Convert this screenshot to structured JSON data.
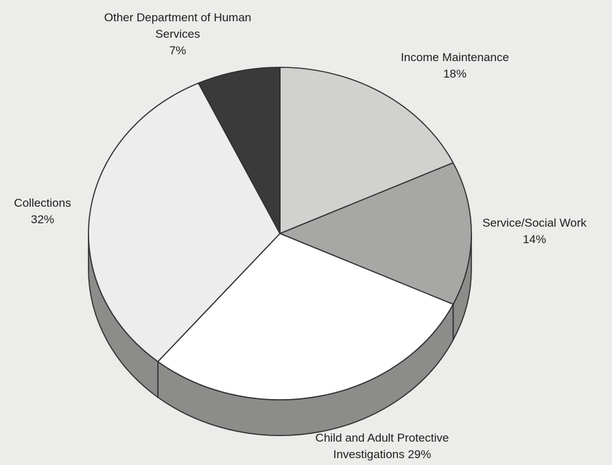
{
  "chart_data": {
    "type": "pie",
    "style": "3d",
    "title": "",
    "slices": [
      {
        "label": "Income Maintenance",
        "value": 18,
        "label_lines": [
          "Income Maintenance",
          "18%"
        ],
        "color": "#d1d1cf"
      },
      {
        "label": "Service/Social Work",
        "value": 14,
        "label_lines": [
          "Service/Social Work",
          "14%"
        ],
        "color": "#a7a7a5"
      },
      {
        "label": "Child and Adult Protective Investigations",
        "value": 29,
        "label_lines": [
          "Child and Adult Protective",
          "Investigations 29%"
        ],
        "color": "#ffffff"
      },
      {
        "label": "Collections",
        "value": 32,
        "label_lines": [
          "Collections",
          "32%"
        ],
        "color": "#ededed"
      },
      {
        "label": "Other Department of Human Services",
        "value": 7,
        "label_lines": [
          "Other Department of Human",
          "Services",
          "7%"
        ],
        "color": "#3a3a3a"
      }
    ]
  }
}
